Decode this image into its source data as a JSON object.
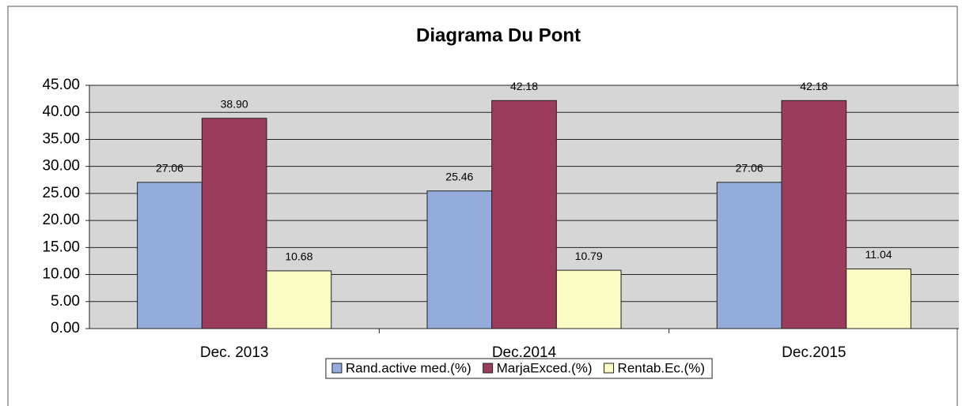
{
  "chart_data": {
    "type": "bar",
    "title": "Diagrama Du Pont",
    "categories": [
      "Dec. 2013",
      "Dec.2014",
      "Dec.2015"
    ],
    "series": [
      {
        "name": "Rand.active med.(%)",
        "color": "#94acdc",
        "values": [
          27.06,
          25.46,
          27.06
        ]
      },
      {
        "name": "MarjaExced.(%)",
        "color": "#9c3c5c",
        "values": [
          38.9,
          42.18,
          42.18
        ],
        "value_labels": [
          "38.90",
          "42.18",
          "42.18"
        ]
      },
      {
        "name": "Rentab.Ec.(%)",
        "color": "#fcfcc4",
        "values": [
          10.68,
          10.79,
          11.04
        ]
      }
    ],
    "ylim": [
      0,
      45
    ],
    "yticks": [
      {
        "value": 0,
        "label": "0.00"
      },
      {
        "value": 5,
        "label": "5.00"
      },
      {
        "value": 10,
        "label": "10.00"
      },
      {
        "value": 15,
        "label": "15.00"
      },
      {
        "value": 20,
        "label": "20.00"
      },
      {
        "value": 25,
        "label": "25.00"
      },
      {
        "value": 30,
        "label": "30.00"
      },
      {
        "value": 35,
        "label": "35.00"
      },
      {
        "value": 40,
        "label": "40.00"
      },
      {
        "value": 45,
        "label": "45.00"
      }
    ],
    "grid": true,
    "legend": "bottom"
  }
}
